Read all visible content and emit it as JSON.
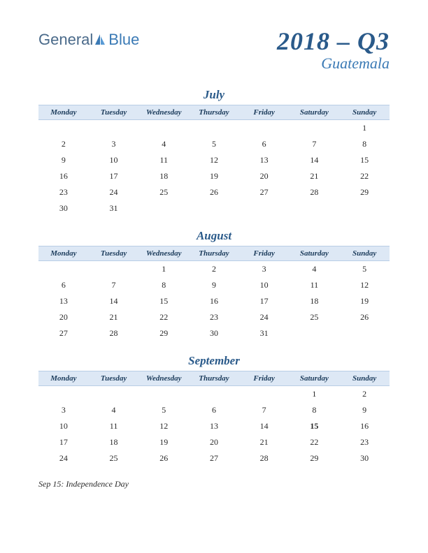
{
  "logo": {
    "text1": "General",
    "text2": "Blue"
  },
  "header": {
    "quarter": "2018 – Q3",
    "country": "Guatemala"
  },
  "weekdays": [
    "Monday",
    "Tuesday",
    "Wednesday",
    "Thursday",
    "Friday",
    "Saturday",
    "Sunday"
  ],
  "months": [
    {
      "name": "July",
      "weeks": [
        [
          "",
          "",
          "",
          "",
          "",
          "",
          "1"
        ],
        [
          "2",
          "3",
          "4",
          "5",
          "6",
          "7",
          "8"
        ],
        [
          "9",
          "10",
          "11",
          "12",
          "13",
          "14",
          "15"
        ],
        [
          "16",
          "17",
          "18",
          "19",
          "20",
          "21",
          "22"
        ],
        [
          "23",
          "24",
          "25",
          "26",
          "27",
          "28",
          "29"
        ],
        [
          "30",
          "31",
          "",
          "",
          "",
          "",
          ""
        ]
      ],
      "holidays": []
    },
    {
      "name": "August",
      "weeks": [
        [
          "",
          "",
          "1",
          "2",
          "3",
          "4",
          "5"
        ],
        [
          "6",
          "7",
          "8",
          "9",
          "10",
          "11",
          "12"
        ],
        [
          "13",
          "14",
          "15",
          "16",
          "17",
          "18",
          "19"
        ],
        [
          "20",
          "21",
          "22",
          "23",
          "24",
          "25",
          "26"
        ],
        [
          "27",
          "28",
          "29",
          "30",
          "31",
          "",
          ""
        ]
      ],
      "holidays": []
    },
    {
      "name": "September",
      "weeks": [
        [
          "",
          "",
          "",
          "",
          "",
          "1",
          "2"
        ],
        [
          "3",
          "4",
          "5",
          "6",
          "7",
          "8",
          "9"
        ],
        [
          "10",
          "11",
          "12",
          "13",
          "14",
          "15",
          "16"
        ],
        [
          "17",
          "18",
          "19",
          "20",
          "21",
          "22",
          "23"
        ],
        [
          "24",
          "25",
          "26",
          "27",
          "28",
          "29",
          "30"
        ]
      ],
      "holidays": [
        "15"
      ]
    }
  ],
  "holiday_note": "Sep 15: Independence Day",
  "colors": {
    "header_bg": "#dde8f5",
    "title_color": "#2a5a8a",
    "accent_color": "#3b7ab5",
    "holiday_color": "#c02020"
  }
}
